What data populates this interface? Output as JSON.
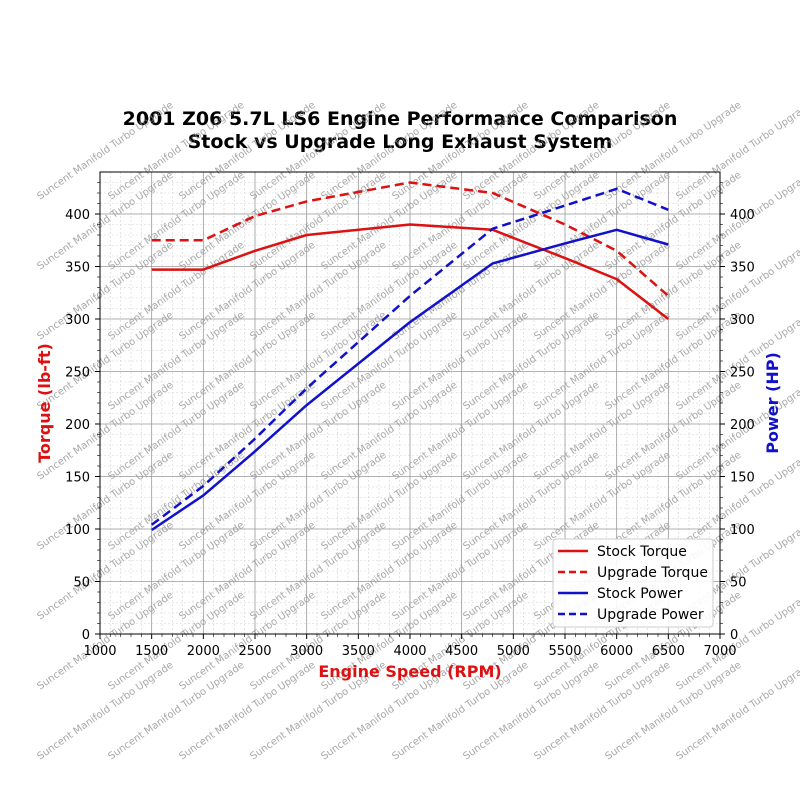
{
  "chart_data": {
    "type": "line",
    "title": "2001 Z06 5.7L LS6 Engine Performance Comparison",
    "subtitle": "Stock vs Upgrade Long Exhaust System",
    "xlabel": "Engine Speed (RPM)",
    "ylabel_left": "Torque (lb-ft)",
    "ylabel_right": "Power (HP)",
    "xlim": [
      1000,
      7000
    ],
    "ylim": [
      0,
      440
    ],
    "x_ticks": [
      "1000",
      "1500",
      "2000",
      "2500",
      "3000",
      "3500",
      "4000",
      "4500",
      "5000",
      "5500",
      "6000",
      "6500",
      "7000"
    ],
    "y_ticks": [
      "0",
      "50",
      "100",
      "150",
      "200",
      "250",
      "300",
      "350",
      "400"
    ],
    "grid": true,
    "legend_position": "lower-right",
    "colors": {
      "torque_axis": "#dd1111",
      "power_axis": "#1111cc"
    },
    "series": [
      {
        "name": "Stock Torque",
        "axis": "left",
        "color": "#dd1111",
        "dash": "solid",
        "x": [
          1500,
          2000,
          2500,
          3000,
          4000,
          4800,
          5500,
          6000,
          6500
        ],
        "y": [
          347,
          347,
          365,
          380,
          390,
          385,
          358,
          338,
          300
        ]
      },
      {
        "name": "Upgrade Torque",
        "axis": "left",
        "color": "#dd1111",
        "dash": "dashed",
        "x": [
          1500,
          2000,
          2500,
          3000,
          4000,
          4800,
          5500,
          6000,
          6500
        ],
        "y": [
          375,
          375,
          398,
          412,
          430,
          420,
          390,
          365,
          322
        ]
      },
      {
        "name": "Stock Power",
        "axis": "right",
        "color": "#1111cc",
        "dash": "solid",
        "x": [
          1500,
          2000,
          2500,
          3000,
          4000,
          4800,
          5500,
          6000,
          6500
        ],
        "y": [
          99,
          132,
          174,
          218,
          297,
          353,
          372,
          385,
          371
        ]
      },
      {
        "name": "Upgrade Power",
        "axis": "right",
        "color": "#1111cc",
        "dash": "dashed",
        "x": [
          1500,
          2000,
          2500,
          3000,
          4000,
          4800,
          5500,
          6000,
          6500
        ],
        "y": [
          104,
          141,
          186,
          234,
          322,
          386,
          408,
          424,
          404
        ]
      }
    ]
  },
  "watermark": "Suncent Manifold Turbo Upgrade"
}
